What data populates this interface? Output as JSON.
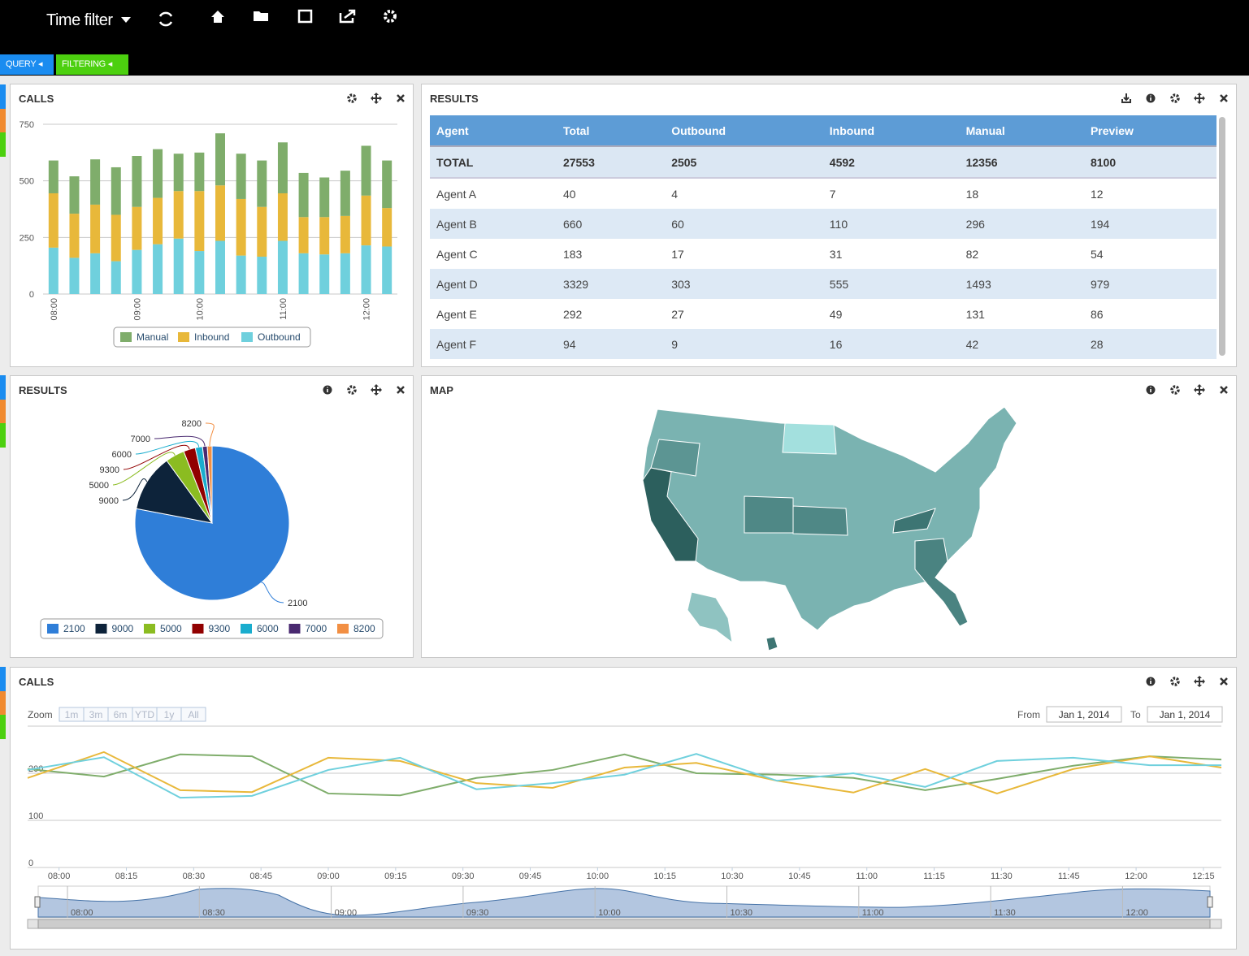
{
  "toolbar": {
    "title": "Time filter"
  },
  "tabs": [
    "QUERY",
    "FILTERING"
  ],
  "panel_titles": [
    "CALLS",
    "RESULTS",
    "RESULTS",
    "MAP",
    "CALLS"
  ],
  "table": {
    "columns": [
      "Agent",
      "Total",
      "Outbound",
      "Inbound",
      "Manual",
      "Preview"
    ],
    "total": [
      "TOTAL",
      27553,
      2505,
      4592,
      12356,
      8100
    ],
    "rows": [
      [
        "Agent A",
        40,
        4,
        7,
        18,
        12
      ],
      [
        "Agent B",
        660,
        60,
        110,
        296,
        194
      ],
      [
        "Agent C",
        183,
        17,
        31,
        82,
        54
      ],
      [
        "Agent D",
        3329,
        303,
        555,
        1493,
        979
      ],
      [
        "Agent E",
        292,
        27,
        49,
        131,
        86
      ],
      [
        "Agent F",
        94,
        9,
        16,
        42,
        28
      ]
    ]
  },
  "range_selector": {
    "zoom_label": "Zoom",
    "buttons": [
      "1m",
      "3m",
      "6m",
      "YTD",
      "1y",
      "All"
    ],
    "from_label": "From",
    "from": "Jan 1, 2014",
    "to_label": "To",
    "to": "Jan 1, 2014"
  },
  "navigator_ticks": [
    "08:00",
    "08:30",
    "09:00",
    "09:30",
    "10:00",
    "10:30",
    "11:00",
    "11:30",
    "12:00"
  ],
  "chart_data": [
    {
      "type": "bar",
      "stacked": true,
      "categories": [
        "08:00",
        null,
        null,
        null,
        "09:00",
        null,
        null,
        "10:00",
        null,
        null,
        null,
        "11:00",
        null,
        null,
        null,
        "12:00",
        null
      ],
      "series": [
        {
          "name": "Outbound",
          "color": "#6fd0dd",
          "values": [
            205,
            160,
            180,
            145,
            195,
            220,
            245,
            190,
            235,
            170,
            165,
            235,
            180,
            175,
            180,
            215,
            210
          ]
        },
        {
          "name": "Inbound",
          "color": "#e8b83a",
          "values": [
            240,
            195,
            215,
            205,
            190,
            205,
            210,
            265,
            245,
            250,
            220,
            210,
            160,
            165,
            165,
            220,
            170
          ]
        },
        {
          "name": "Manual",
          "color": "#7fad6b",
          "values": [
            145,
            165,
            200,
            210,
            225,
            215,
            165,
            170,
            230,
            200,
            205,
            225,
            195,
            175,
            200,
            220,
            210
          ]
        }
      ],
      "ylim": [
        0,
        750
      ],
      "yticks": [
        0,
        250,
        500,
        750
      ],
      "grid": true
    },
    {
      "type": "pie",
      "categories": [
        "2100",
        "9000",
        "5000",
        "9300",
        "6000",
        "7000",
        "8200"
      ],
      "values": [
        78,
        12,
        4,
        2.5,
        1.5,
        1,
        1
      ],
      "colors": [
        "#2f7ed8",
        "#0d233a",
        "#8bbc21",
        "#910000",
        "#1aadce",
        "#492970",
        "#f28f43"
      ]
    },
    {
      "type": "line",
      "x": [
        "07:53",
        "08:10",
        "08:27",
        "08:43",
        "09:00",
        "09:16",
        "09:33",
        "09:50",
        "10:06",
        "10:22",
        "10:40",
        "10:57",
        "11:13",
        "11:29",
        "11:46",
        "12:03",
        "12:19"
      ],
      "xlim": [
        "07:53",
        "12:19"
      ],
      "xticks": [
        "08:00",
        "08:15",
        "08:30",
        "08:45",
        "09:00",
        "09:15",
        "09:30",
        "09:45",
        "10:00",
        "10:15",
        "10:30",
        "10:45",
        "11:00",
        "11:15",
        "11:30",
        "11:45",
        "12:00",
        "12:15"
      ],
      "series": [
        {
          "color": "#7fad6b",
          "values": [
            209,
            193,
            240,
            236,
            157,
            153,
            190,
            207,
            240,
            200,
            197,
            190,
            164,
            188,
            216,
            236,
            229
          ]
        },
        {
          "color": "#e8b83a",
          "values": [
            190,
            245,
            164,
            160,
            233,
            226,
            179,
            169,
            212,
            222,
            184,
            159,
            209,
            157,
            209,
            236,
            212
          ]
        },
        {
          "color": "#6fd0dd",
          "values": [
            207,
            234,
            148,
            152,
            207,
            233,
            166,
            179,
            197,
            241,
            184,
            200,
            171,
            226,
            233,
            217,
            217
          ]
        }
      ],
      "ylim": [
        0,
        300
      ],
      "yticks": [
        0,
        100,
        200
      ],
      "grid": true
    }
  ]
}
